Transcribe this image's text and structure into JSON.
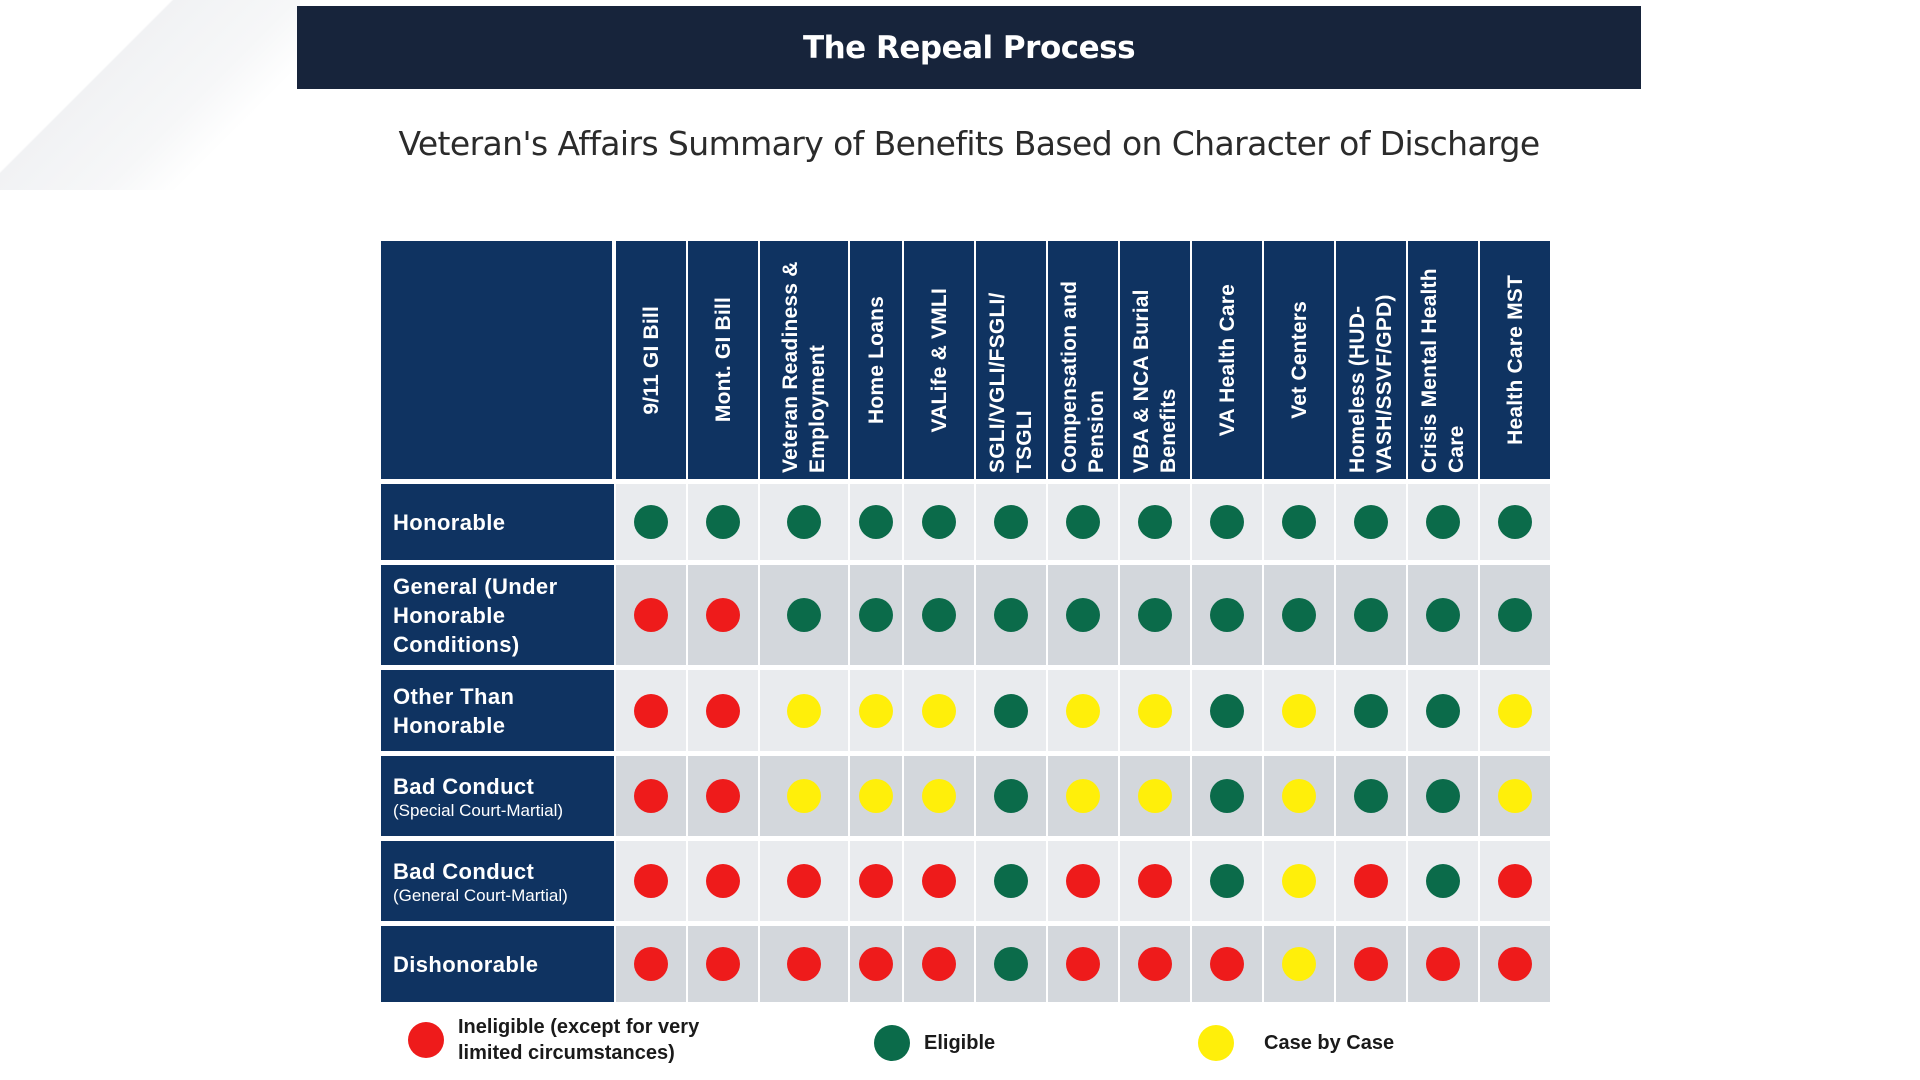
{
  "header": {
    "title": "The Repeal Process",
    "subtitle": "Veteran's Affairs Summary of Benefits Based on Character of Discharge"
  },
  "colors": {
    "header_bg": "#17243b",
    "table_navy": "#0f3361",
    "ineligible": "#ee1b1b",
    "eligible": "#0b6b4a",
    "case_by_case": "#ffef0a"
  },
  "table": {
    "columns": [
      "9/11 GI Bill",
      "Mont. GI Bill",
      "Veteran Readiness & Employment",
      "Home Loans",
      "VALife & VMLI",
      "SGLI/VGLI/FSGLI/ TSGLI",
      "Compensation and Pension",
      "VBA & NCA Burial Benefits",
      "VA Health Care",
      "Vet Centers",
      "Homeless (HUD-VASH/SSVF/GPD)",
      "Crisis Mental Health Care",
      "Health Care MST"
    ],
    "rows": [
      {
        "label": "Honorable",
        "sub": "",
        "status": [
          "eligible",
          "eligible",
          "eligible",
          "eligible",
          "eligible",
          "eligible",
          "eligible",
          "eligible",
          "eligible",
          "eligible",
          "eligible",
          "eligible",
          "eligible"
        ]
      },
      {
        "label": "General (Under Honorable Conditions)",
        "sub": "",
        "status": [
          "ineligible",
          "ineligible",
          "eligible",
          "eligible",
          "eligible",
          "eligible",
          "eligible",
          "eligible",
          "eligible",
          "eligible",
          "eligible",
          "eligible",
          "eligible"
        ]
      },
      {
        "label": "Other Than Honorable",
        "sub": "",
        "status": [
          "ineligible",
          "ineligible",
          "case",
          "case",
          "case",
          "eligible",
          "case",
          "case",
          "eligible",
          "case",
          "eligible",
          "eligible",
          "case"
        ]
      },
      {
        "label": "Bad Conduct",
        "sub": "(Special Court-Martial)",
        "status": [
          "ineligible",
          "ineligible",
          "case",
          "case",
          "case",
          "eligible",
          "case",
          "case",
          "eligible",
          "case",
          "eligible",
          "eligible",
          "case"
        ]
      },
      {
        "label": "Bad Conduct",
        "sub": "(General Court-Martial)",
        "status": [
          "ineligible",
          "ineligible",
          "ineligible",
          "ineligible",
          "ineligible",
          "eligible",
          "ineligible",
          "ineligible",
          "eligible",
          "case",
          "ineligible",
          "eligible",
          "ineligible"
        ]
      },
      {
        "label": "Dishonorable",
        "sub": "",
        "status": [
          "ineligible",
          "ineligible",
          "ineligible",
          "ineligible",
          "ineligible",
          "eligible",
          "ineligible",
          "ineligible",
          "ineligible",
          "case",
          "ineligible",
          "ineligible",
          "ineligible"
        ]
      }
    ]
  },
  "legend": [
    {
      "key": "ineligible",
      "label": "Ineligible (except for very limited circumstances)"
    },
    {
      "key": "eligible",
      "label": "Eligible"
    },
    {
      "key": "case",
      "label": "Case by Case"
    }
  ]
}
